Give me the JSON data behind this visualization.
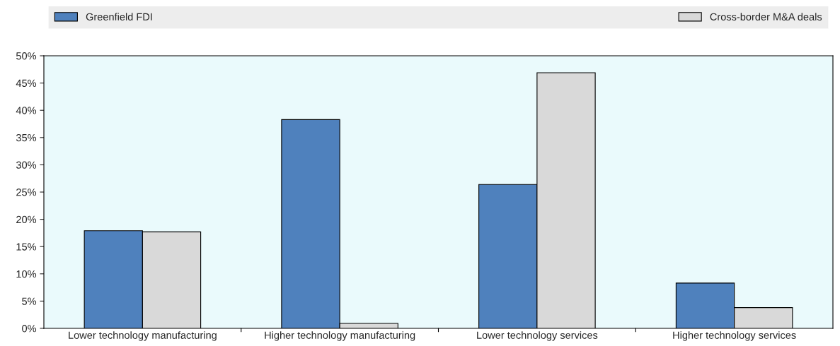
{
  "chart_data": {
    "type": "bar",
    "categories": [
      "Lower technology manufacturing",
      "Higher technology manufacturing",
      "Lower technology services",
      "Higher technology services"
    ],
    "series": [
      {
        "name": "Greenfield FDI",
        "color": "#4f81bd",
        "values": [
          17.9,
          38.3,
          26.4,
          8.3
        ]
      },
      {
        "name": "Cross-border M&A deals",
        "color": "#d9d9d9",
        "values": [
          17.7,
          0.9,
          46.9,
          3.8
        ]
      }
    ],
    "ylim": [
      0,
      50
    ],
    "yticks": [
      {
        "value": 0,
        "label": "0%"
      },
      {
        "value": 5,
        "label": "5%"
      },
      {
        "value": 10,
        "label": "10%"
      },
      {
        "value": 15,
        "label": "15%"
      },
      {
        "value": 20,
        "label": "20%"
      },
      {
        "value": 25,
        "label": "25%"
      },
      {
        "value": 30,
        "label": "30%"
      },
      {
        "value": 35,
        "label": "35%"
      },
      {
        "value": 40,
        "label": "40%"
      },
      {
        "value": 45,
        "label": "45%"
      },
      {
        "value": 50,
        "label": "50%"
      }
    ],
    "grid": false,
    "legend": "top"
  }
}
